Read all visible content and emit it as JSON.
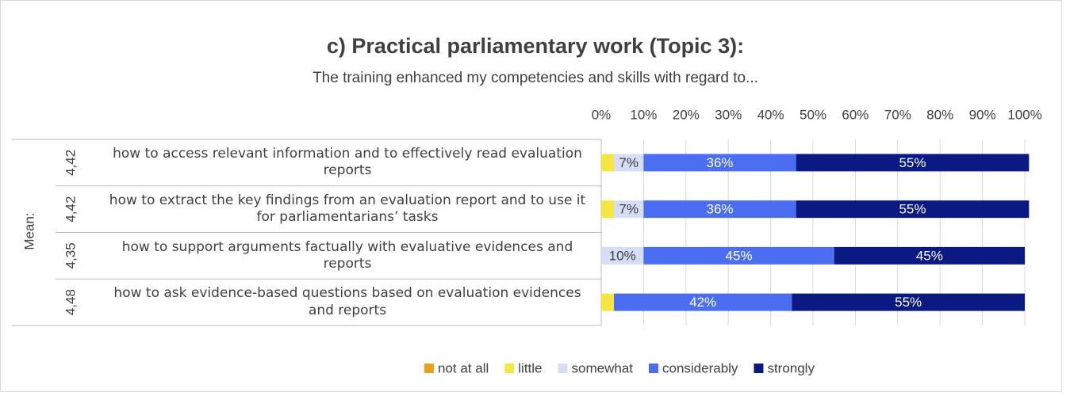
{
  "chart_data": {
    "type": "stacked-bar-horizontal",
    "title": "c) Practical parliamentary work (Topic 3):",
    "subtitle": "The training enhanced my competencies and skills with regard to...",
    "mean_label": "Mean:",
    "means": [
      "4,42",
      "4,42",
      "4,35",
      "4,48"
    ],
    "categories": [
      "how to access relevant information and to effectively read evaluation reports",
      "how to extract the key findings from an evaluation report and to use it for parliamentarians’ tasks",
      "how to support arguments factually with evaluative evidences and reports",
      "how to ask evidence-based questions based on evaluation evidences and reports"
    ],
    "series": [
      {
        "name": "not at all",
        "color": "#e9a11a",
        "values": [
          0,
          0,
          0,
          0
        ],
        "value_labels": [
          null,
          null,
          null,
          null
        ]
      },
      {
        "name": "little",
        "color": "#f6e645",
        "values": [
          3,
          3,
          0,
          3
        ],
        "value_labels": [
          null,
          null,
          null,
          null
        ]
      },
      {
        "name": "somewhat",
        "color": "#d6ddf6",
        "values": [
          7,
          7,
          10,
          0
        ],
        "value_labels": [
          "7%",
          "7%",
          "10%",
          null
        ]
      },
      {
        "name": "considerably",
        "color": "#4b6df0",
        "values": [
          36,
          36,
          45,
          42
        ],
        "value_labels": [
          "36%",
          "36%",
          "45%",
          "42%"
        ]
      },
      {
        "name": "strongly",
        "color": "#0b1a82",
        "values": [
          55,
          55,
          45,
          55
        ],
        "value_labels": [
          "55%",
          "55%",
          "45%",
          "55%"
        ]
      }
    ],
    "xlim": [
      0,
      100
    ],
    "xticks": [
      {
        "value": 0,
        "label": "0%"
      },
      {
        "value": 10,
        "label": "10%"
      },
      {
        "value": 20,
        "label": "20%"
      },
      {
        "value": 30,
        "label": "30%"
      },
      {
        "value": 40,
        "label": "40%"
      },
      {
        "value": 50,
        "label": "50%"
      },
      {
        "value": 60,
        "label": "60%"
      },
      {
        "value": 70,
        "label": "70%"
      },
      {
        "value": 80,
        "label": "80%"
      },
      {
        "value": 90,
        "label": "90%"
      },
      {
        "value": 100,
        "label": "100%"
      }
    ],
    "grid": true
  }
}
